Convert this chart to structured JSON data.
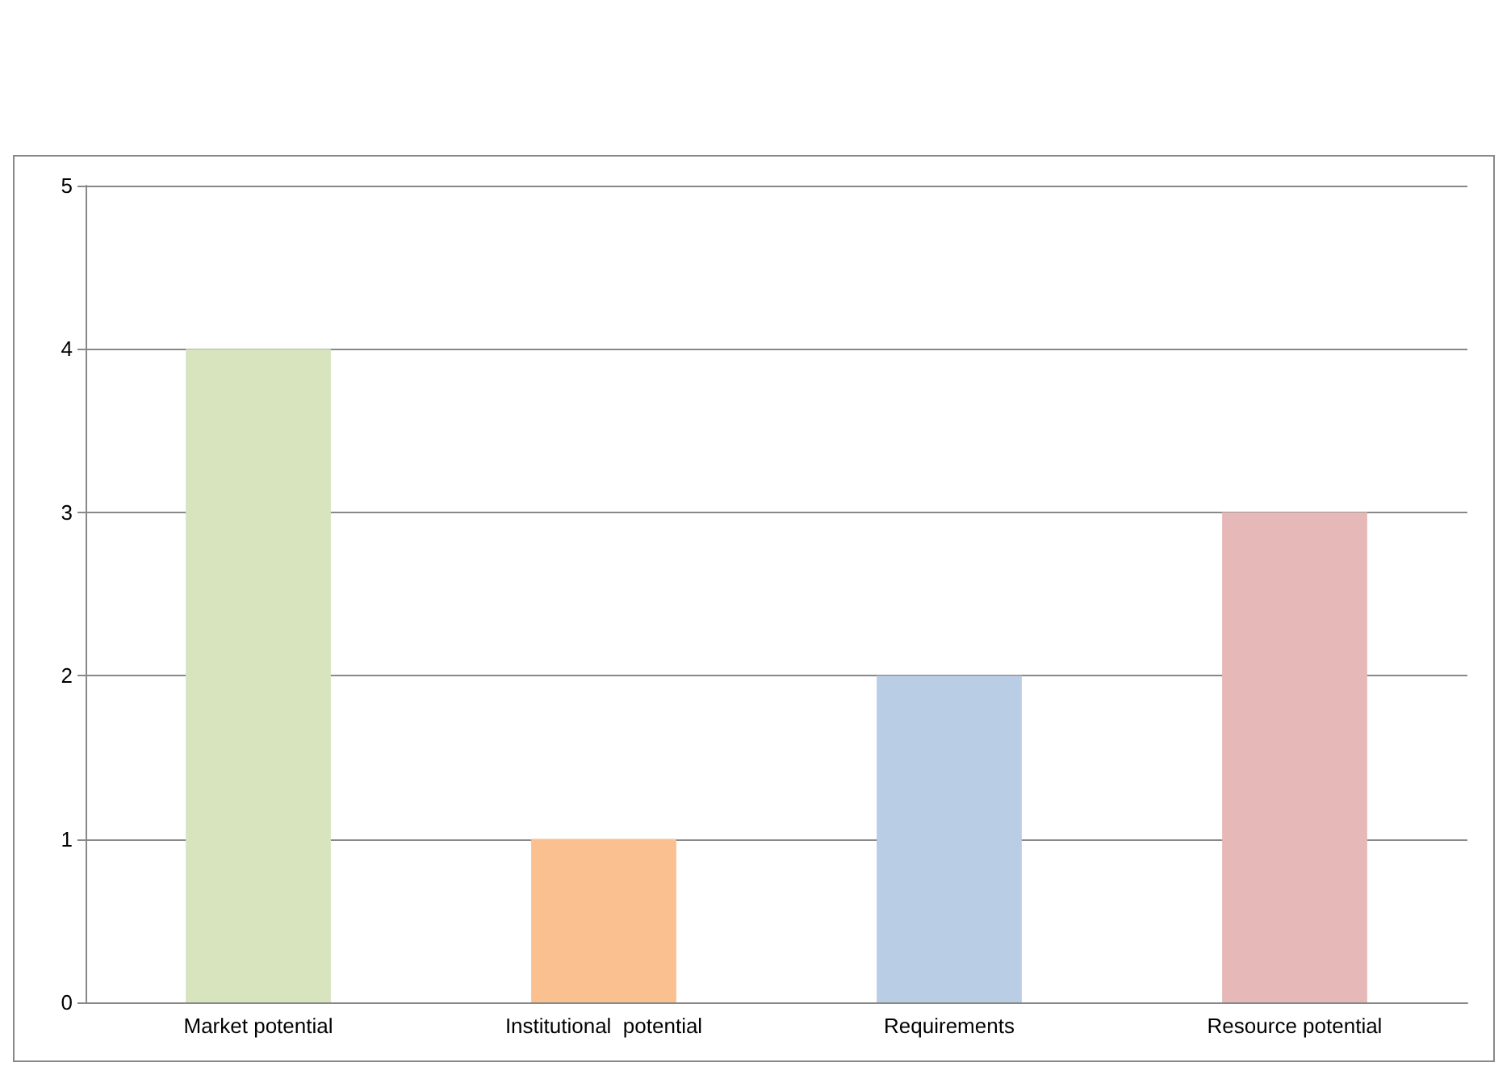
{
  "chart_data": {
    "type": "bar",
    "categories": [
      "Market potential",
      "Institutional  potential",
      "Requirements",
      "Resource potential"
    ],
    "values": [
      4,
      1,
      2,
      3
    ],
    "colors": [
      "#d7e4bd",
      "#fac090",
      "#b9cde5",
      "#e6b9b8"
    ],
    "ylim": [
      0,
      5
    ],
    "yticks": [
      0,
      1,
      2,
      3,
      4,
      5
    ],
    "grid": "y"
  }
}
